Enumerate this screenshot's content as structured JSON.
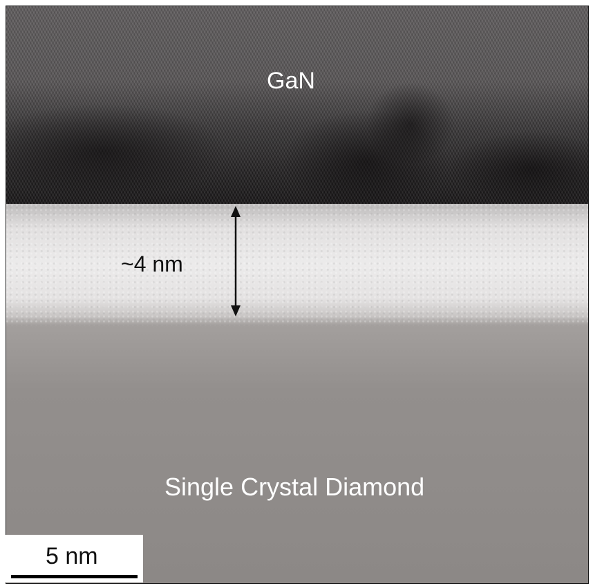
{
  "layers": {
    "top_label": "GaN",
    "bottom_label": "Single Crystal Diamond"
  },
  "interlayer": {
    "thickness_label": "~4 nm"
  },
  "scalebar": {
    "label": "5 nm"
  },
  "colors": {
    "gan": "#4a4748",
    "interlayer": "#e6e4e4",
    "diamond": "#8f8a88",
    "arrow": "#111111"
  }
}
